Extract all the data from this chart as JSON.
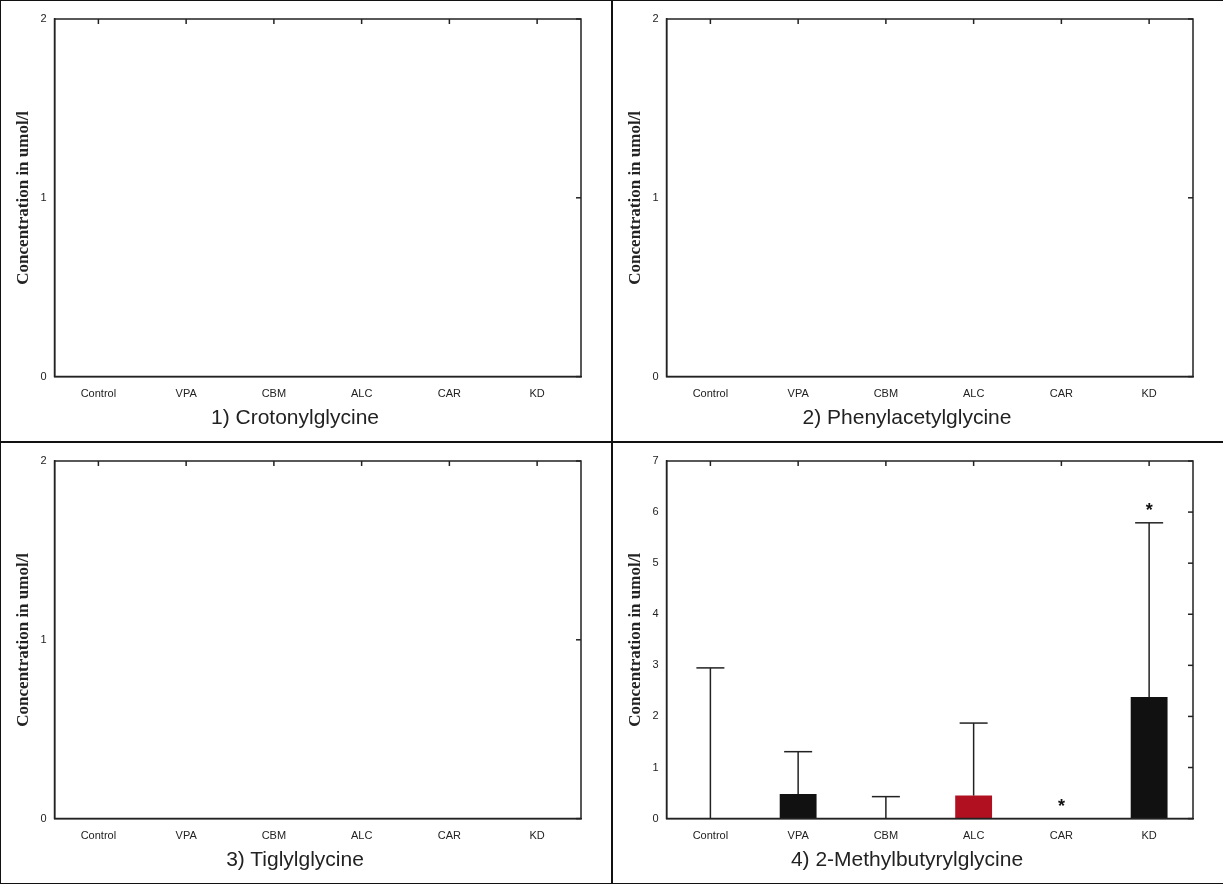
{
  "chart_data": [
    {
      "type": "bar",
      "title": "1) Crotonylglycine",
      "ylabel": "Concentration in umol/l",
      "categories": [
        "Control",
        "VPA",
        "CBM",
        "ALC",
        "CAR",
        "KD"
      ],
      "values": [
        0,
        0,
        0,
        0,
        0,
        0
      ],
      "ylim": [
        0,
        2
      ],
      "yticks": [
        0,
        1,
        2
      ],
      "grid": false,
      "legend": false
    },
    {
      "type": "bar",
      "title": "2) Phenylacetylglycine",
      "ylabel": "Concentration in umol/l",
      "categories": [
        "Control",
        "VPA",
        "CBM",
        "ALC",
        "CAR",
        "KD"
      ],
      "values": [
        0,
        0,
        0,
        0,
        0,
        0
      ],
      "ylim": [
        0,
        2
      ],
      "yticks": [
        0,
        1,
        2
      ],
      "grid": false,
      "legend": false
    },
    {
      "type": "bar",
      "title": "3) Tiglylglycine",
      "ylabel": "Concentration in umol/l",
      "categories": [
        "Control",
        "VPA",
        "CBM",
        "ALC",
        "CAR",
        "KD"
      ],
      "values": [
        0,
        0,
        0,
        0,
        0,
        0
      ],
      "ylim": [
        0,
        2
      ],
      "yticks": [
        0,
        1,
        2
      ],
      "grid": false,
      "legend": false
    },
    {
      "type": "bar",
      "title": "4) 2-Methylbutyrylglycine",
      "ylabel": "Concentration in umol/l",
      "categories": [
        "Control",
        "VPA",
        "CBM",
        "ALC",
        "CAR",
        "KD"
      ],
      "values": [
        0,
        0.48,
        0,
        0.45,
        0,
        2.38
      ],
      "colors": [
        "#111111",
        "#111111",
        "#111111",
        "#b01020",
        "#111111",
        "#111111"
      ],
      "errors": [
        [
          0,
          2.95
        ],
        [
          0.48,
          1.31
        ],
        [
          0,
          0.43
        ],
        [
          0.45,
          1.87
        ],
        null,
        [
          2.38,
          5.79
        ]
      ],
      "annotations": [
        {
          "text": "*",
          "x": "CAR",
          "y": 0
        },
        {
          "text": "*",
          "x": "KD",
          "y": 5.79
        }
      ],
      "ylim": [
        0,
        7
      ],
      "yticks": [
        0,
        1,
        2,
        3,
        4,
        5,
        6,
        7
      ],
      "grid": false,
      "legend": false
    }
  ]
}
